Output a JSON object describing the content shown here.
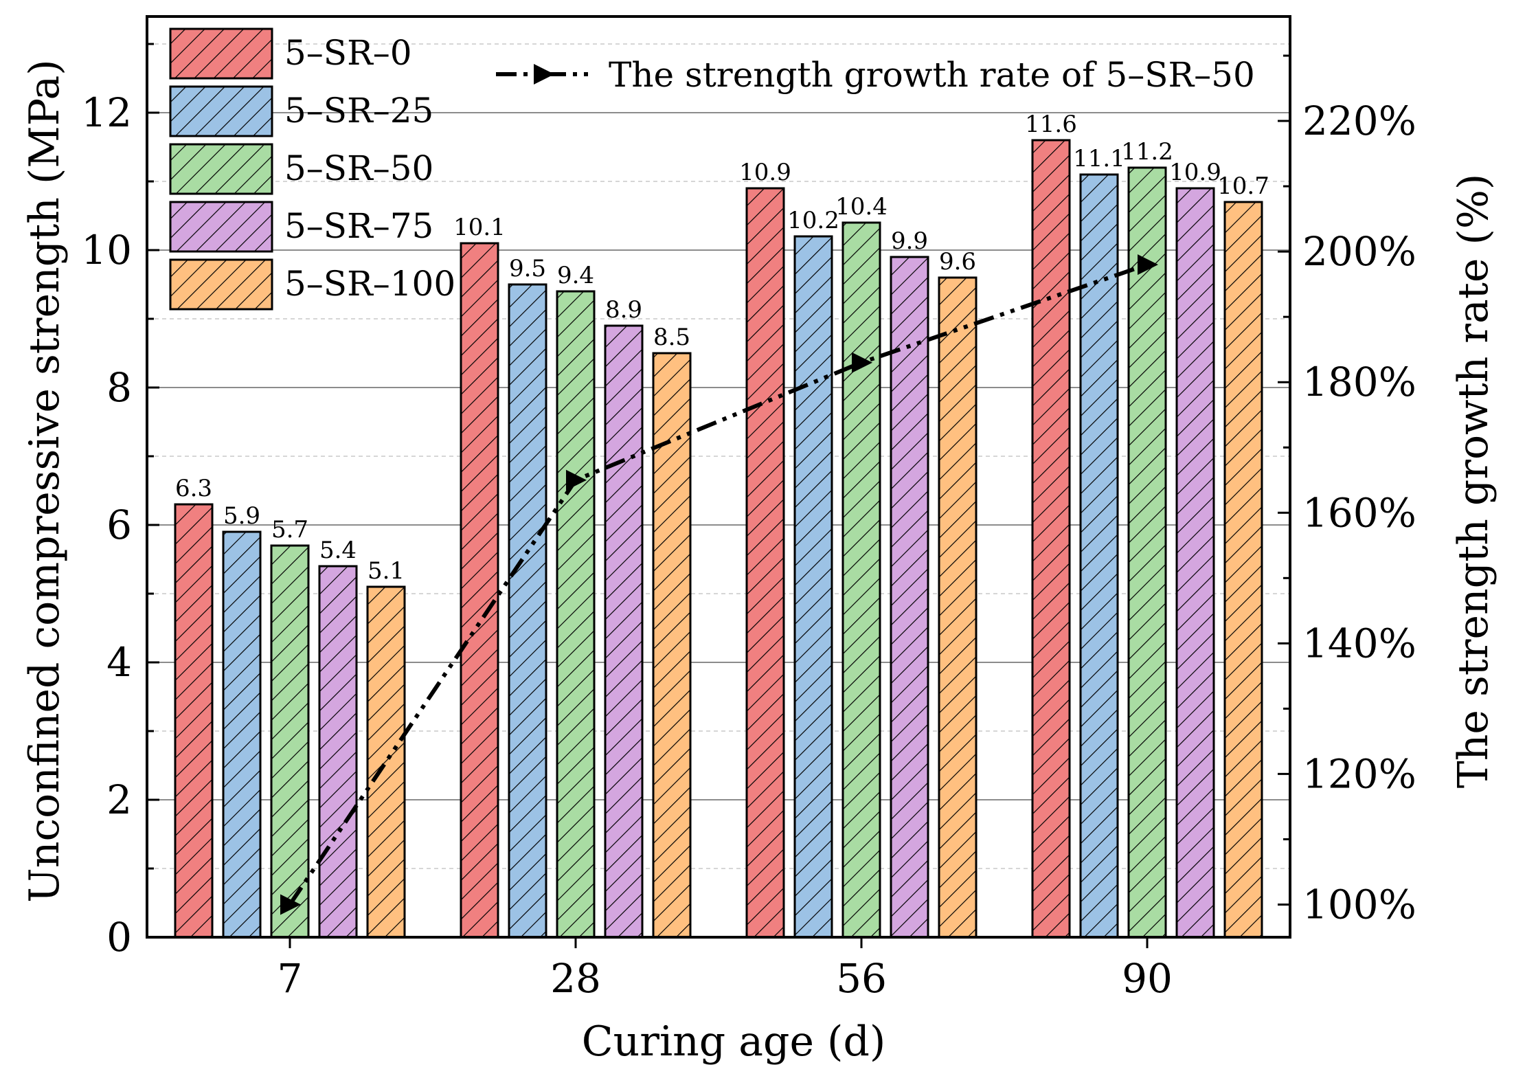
{
  "chart_data": {
    "type": "bar",
    "categories": [
      "7",
      "28",
      "56",
      "90"
    ],
    "xlabel": "Curing age (d)",
    "ylabel": "Unconfined compressive strength (MPa)",
    "y2label": "The strength growth rate (%)",
    "ylim": [
      0,
      13.4
    ],
    "yticks": [
      0,
      2,
      4,
      6,
      8,
      10,
      12
    ],
    "y2lim": [
      95,
      236
    ],
    "y2ticks": [
      100,
      120,
      140,
      160,
      180,
      200,
      220
    ],
    "y2tick_labels": [
      "100%",
      "120%",
      "140%",
      "160%",
      "180%",
      "200%",
      "220%"
    ],
    "grid": true,
    "legend_position": "top-left",
    "series": [
      {
        "name": "5–SR–0",
        "color": "#F08080",
        "values": [
          6.3,
          10.1,
          10.9,
          11.6
        ],
        "labels": [
          "6.3",
          "10.1",
          "10.9",
          "11.6"
        ]
      },
      {
        "name": "5–SR–25",
        "color": "#9CC2E5",
        "values": [
          5.9,
          9.5,
          10.2,
          11.1
        ],
        "labels": [
          "5.9",
          "9.5",
          "10.2",
          "11.1"
        ]
      },
      {
        "name": "5–SR–50",
        "color": "#A9DCA3",
        "values": [
          5.7,
          9.4,
          10.4,
          11.2
        ],
        "labels": [
          "5.7",
          "9.4",
          "10.4",
          "11.2"
        ]
      },
      {
        "name": "5–SR–75",
        "color": "#D4A6DF",
        "values": [
          5.4,
          8.9,
          9.9,
          10.9
        ],
        "labels": [
          "5.4",
          "8.9",
          "9.9",
          "10.9"
        ]
      },
      {
        "name": "5–SR–100",
        "color": "#FFC080",
        "values": [
          5.1,
          8.5,
          9.6,
          10.7
        ],
        "labels": [
          "5.1",
          "8.5",
          "9.6",
          "10.7"
        ]
      }
    ],
    "line_series": {
      "name": "The strength growth rate of 5–SR–50",
      "axis": "y2",
      "color": "#000000",
      "values": [
        100,
        165,
        183,
        198
      ]
    }
  }
}
